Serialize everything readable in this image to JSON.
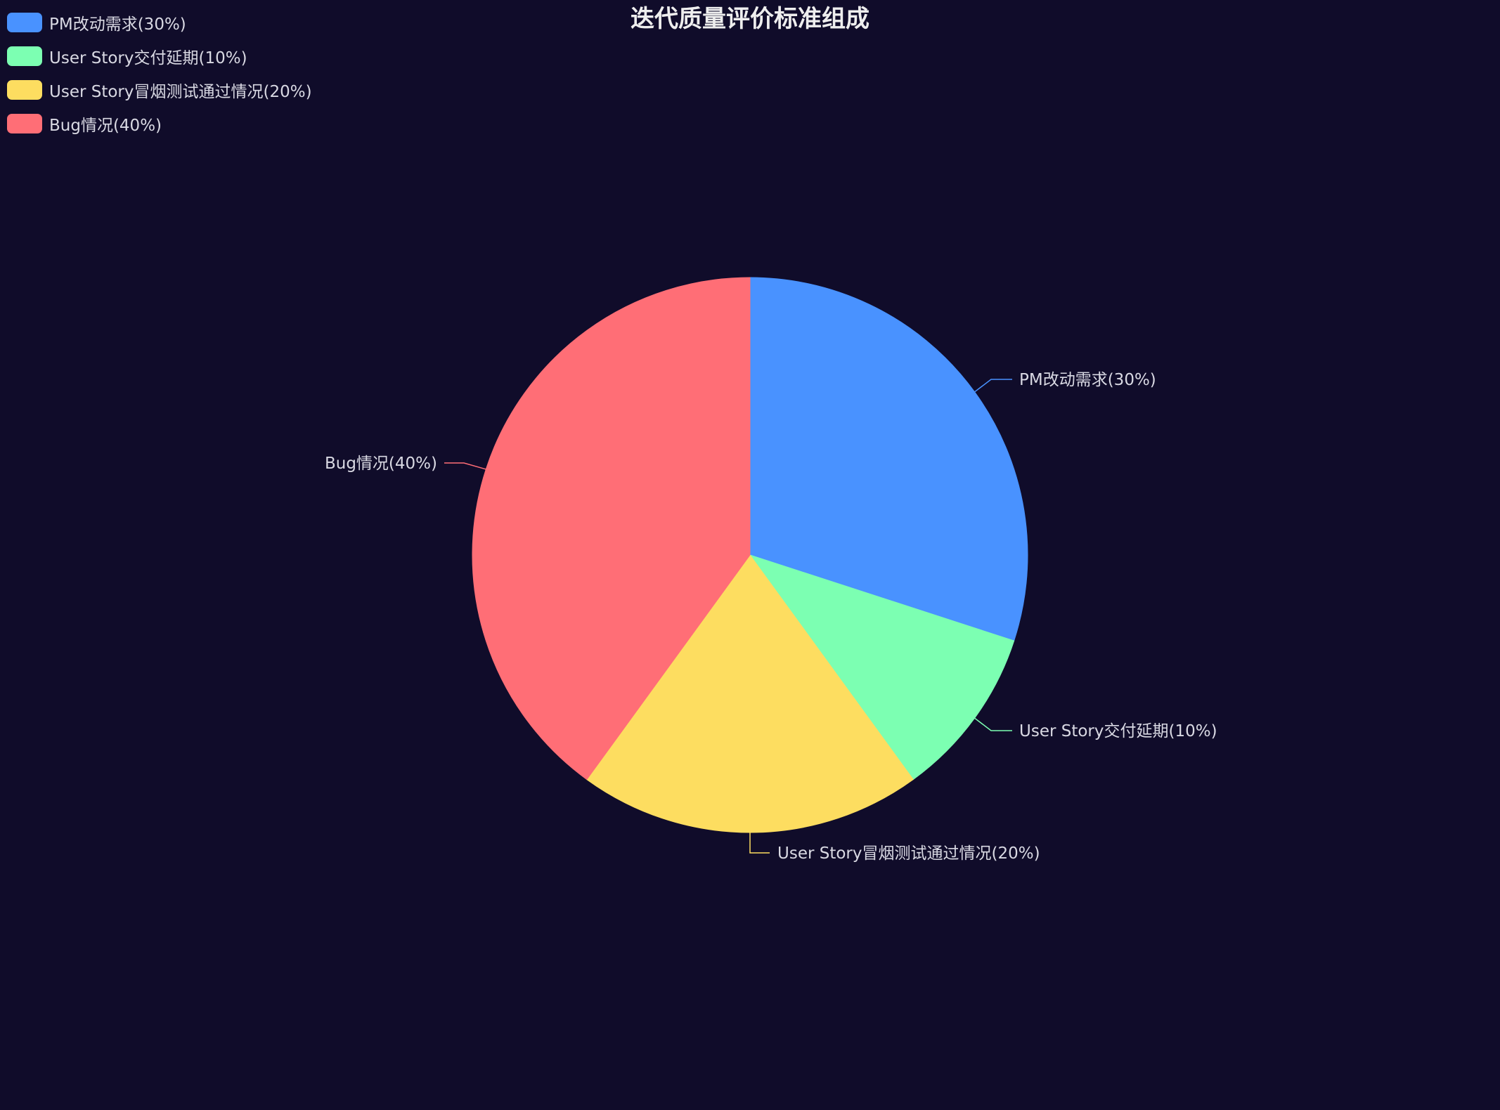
{
  "chart_data": {
    "type": "pie",
    "title": "迭代质量评价标准组成",
    "slices": [
      {
        "label": "PM改动需求(30%)",
        "value": 30,
        "color": "#4992ff"
      },
      {
        "label": "User Story交付延期(10%)",
        "value": 10,
        "color": "#7cffb2"
      },
      {
        "label": "User Story冒烟测试通过情况(20%)",
        "value": 20,
        "color": "#fddd60"
      },
      {
        "label": "Bug情况(40%)",
        "value": 40,
        "color": "#ff6e76"
      }
    ],
    "legend_position": "top-left",
    "start_angle_deg": 90,
    "direction": "clockwise"
  },
  "style": {
    "background": "#100c2a",
    "title_color": "#eeeeee",
    "label_color": "#d9d9e3"
  }
}
